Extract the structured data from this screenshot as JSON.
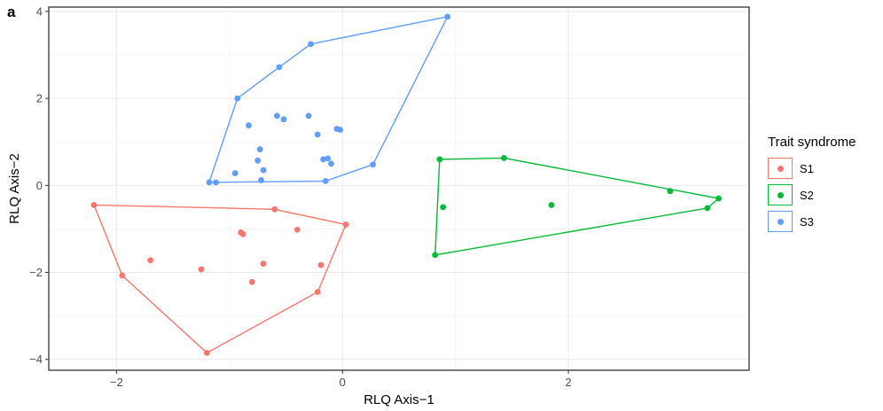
{
  "panel_label": "a",
  "chart_data": {
    "type": "scatter",
    "title": "",
    "xlabel": "RLQ Axis−1",
    "ylabel": "RLQ Axis−2",
    "xlim": [
      -2.6,
      3.6
    ],
    "ylim": [
      -4.25,
      4.1
    ],
    "xticks": [
      -2,
      0,
      2
    ],
    "xtick_labels": [
      "−2",
      "0",
      "2"
    ],
    "yticks": [
      -4,
      -2,
      0,
      2,
      4
    ],
    "ytick_labels": [
      "−4",
      "−2",
      "0",
      "2",
      "4"
    ],
    "grid": true,
    "legend_position": "right",
    "legend_title": "Trait syndrome",
    "series": [
      {
        "name": "S1",
        "color": "#F8766D",
        "points": [
          [
            -2.2,
            -0.45
          ],
          [
            -1.95,
            -2.07
          ],
          [
            -1.7,
            -1.72
          ],
          [
            -1.25,
            -1.93
          ],
          [
            -1.2,
            -3.85
          ],
          [
            -0.9,
            -1.08
          ],
          [
            -0.88,
            -1.12
          ],
          [
            -0.8,
            -2.22
          ],
          [
            -0.7,
            -1.8
          ],
          [
            -0.6,
            -0.55
          ],
          [
            -0.4,
            -1.02
          ],
          [
            -0.22,
            -2.45
          ],
          [
            -0.19,
            -1.83
          ],
          [
            0.03,
            -0.9
          ]
        ],
        "hull": [
          [
            -2.2,
            -0.45
          ],
          [
            -0.6,
            -0.55
          ],
          [
            0.03,
            -0.9
          ],
          [
            -0.22,
            -2.45
          ],
          [
            -1.2,
            -3.85
          ],
          [
            -1.95,
            -2.07
          ]
        ]
      },
      {
        "name": "S2",
        "color": "#00BA38",
        "points": [
          [
            0.82,
            -1.6
          ],
          [
            0.86,
            0.6
          ],
          [
            0.89,
            -0.5
          ],
          [
            1.43,
            0.63
          ],
          [
            1.85,
            -0.45
          ],
          [
            2.9,
            -0.13
          ],
          [
            3.23,
            -0.52
          ],
          [
            3.33,
            -0.3
          ]
        ],
        "hull": [
          [
            0.82,
            -1.6
          ],
          [
            0.86,
            0.6
          ],
          [
            1.43,
            0.63
          ],
          [
            3.33,
            -0.3
          ],
          [
            3.23,
            -0.52
          ]
        ]
      },
      {
        "name": "S3",
        "color": "#619CFF",
        "points": [
          [
            -1.18,
            0.07
          ],
          [
            -1.12,
            0.07
          ],
          [
            -0.95,
            0.28
          ],
          [
            -0.93,
            2.0
          ],
          [
            -0.83,
            1.38
          ],
          [
            -0.75,
            0.57
          ],
          [
            -0.73,
            0.83
          ],
          [
            -0.72,
            0.12
          ],
          [
            -0.7,
            0.35
          ],
          [
            -0.58,
            1.6
          ],
          [
            -0.56,
            2.72
          ],
          [
            -0.52,
            1.52
          ],
          [
            -0.3,
            1.6
          ],
          [
            -0.28,
            3.25
          ],
          [
            -0.22,
            1.17
          ],
          [
            -0.17,
            0.6
          ],
          [
            -0.15,
            0.1
          ],
          [
            -0.13,
            0.62
          ],
          [
            -0.1,
            0.5
          ],
          [
            -0.05,
            1.3
          ],
          [
            -0.02,
            1.28
          ],
          [
            0.27,
            0.48
          ],
          [
            0.93,
            3.88
          ]
        ],
        "hull": [
          [
            -1.18,
            0.07
          ],
          [
            -0.93,
            2.0
          ],
          [
            -0.56,
            2.72
          ],
          [
            -0.28,
            3.25
          ],
          [
            0.93,
            3.88
          ],
          [
            0.27,
            0.48
          ],
          [
            -0.15,
            0.1
          ]
        ]
      }
    ]
  }
}
